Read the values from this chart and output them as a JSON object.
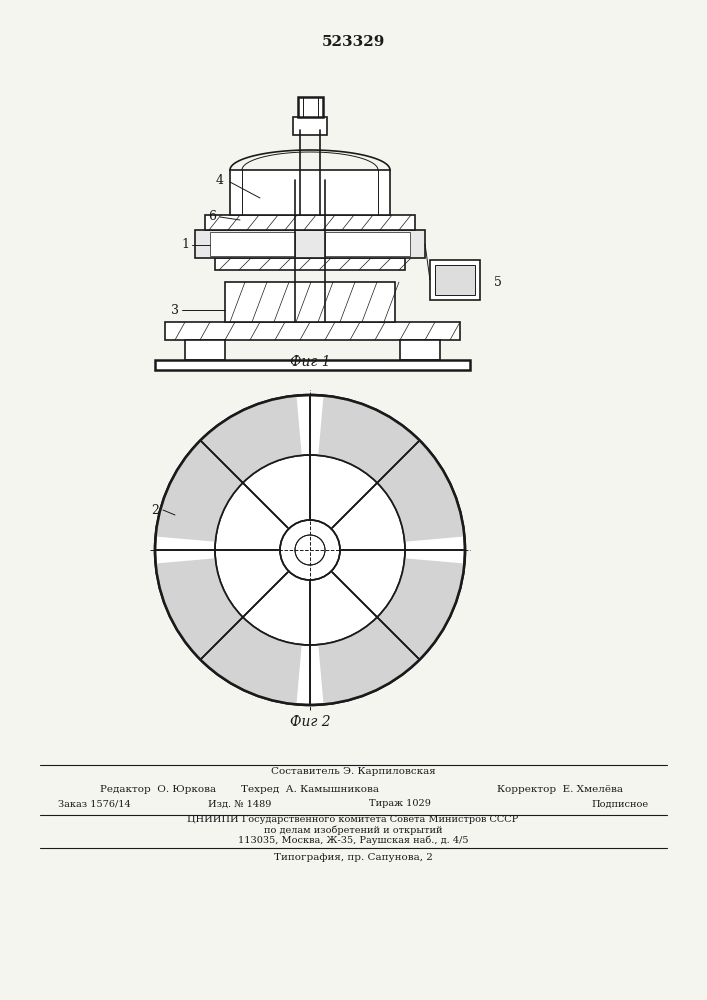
{
  "patent_number": "523329",
  "fig1_label": "Фиг 1",
  "fig2_label": "Фиг 2",
  "footer_line1": "Составитель Э. Карпиловская",
  "footer_line2_col1": "Редактор  О. Юркова",
  "footer_line2_col2": "Техред  А. Камышникова",
  "footer_line2_col3": "Корректор  Е. Хмелёва",
  "footer_line3_col1": "Заказ 1576/14",
  "footer_line3_col2": "Изд. № 1489",
  "footer_line3_col3": "Тираж 1029",
  "footer_line3_col4": "Подписное",
  "footer_line4": "ЦНИИПИ Государственного комитета Совета Министров СССР",
  "footer_line5": "по делам изобретений и открытий",
  "footer_line6": "113035, Москва, Ж-35, Раушская наб., д. 4/5",
  "footer_line7": "Типография, пр. Сапунова, 2",
  "bg_color": "#f5f5f0",
  "line_color": "#1a1a1a",
  "label_1": "1",
  "label_2": "2",
  "label_3": "3",
  "label_4": "4",
  "label_5": "5",
  "label_6": "6"
}
